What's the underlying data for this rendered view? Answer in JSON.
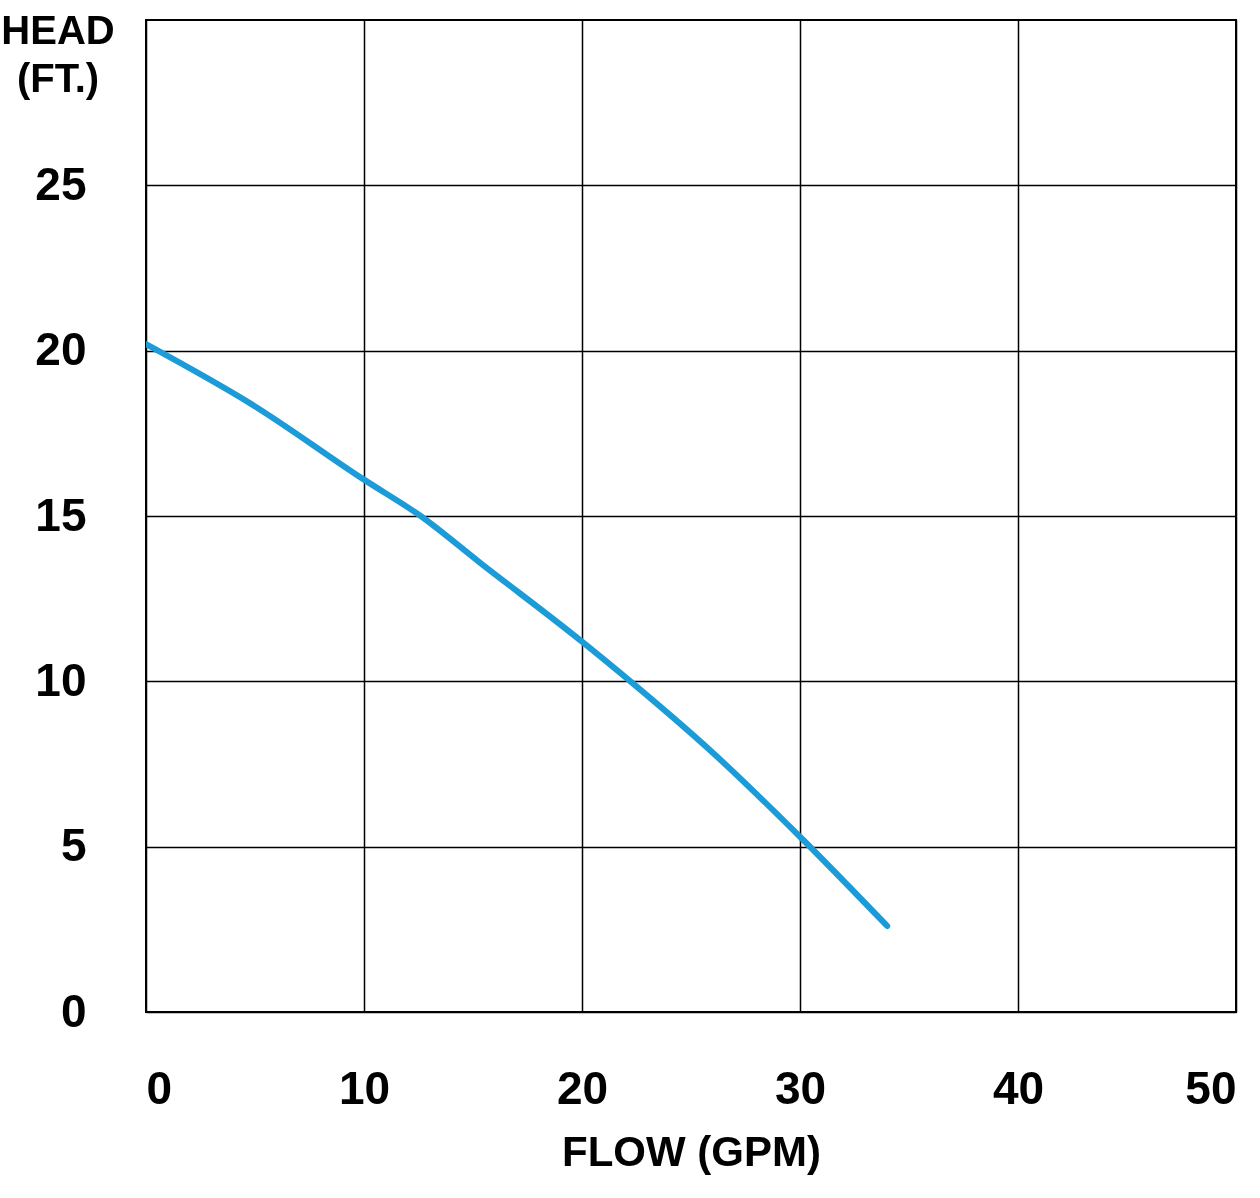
{
  "chart_data": {
    "type": "line",
    "xlabel": "FLOW (GPM)",
    "ylabel": "HEAD (FT.)",
    "xlim": [
      0,
      50
    ],
    "xticks": [
      0,
      10,
      20,
      30,
      40,
      50
    ],
    "ylim": [
      0,
      30
    ],
    "yticks": [
      0,
      5,
      10,
      15,
      20,
      25
    ],
    "grid": true,
    "series": [
      {
        "color": "#1b9bd7",
        "x": [
          0,
          4.8,
          10,
          12.6,
          15.3,
          20,
          22.4,
          25.9,
          30,
          34
        ],
        "values": [
          20.2,
          18.4,
          16.1,
          15,
          13.6,
          11.2,
          9.9,
          7.9,
          5.3,
          2.6
        ]
      }
    ]
  }
}
